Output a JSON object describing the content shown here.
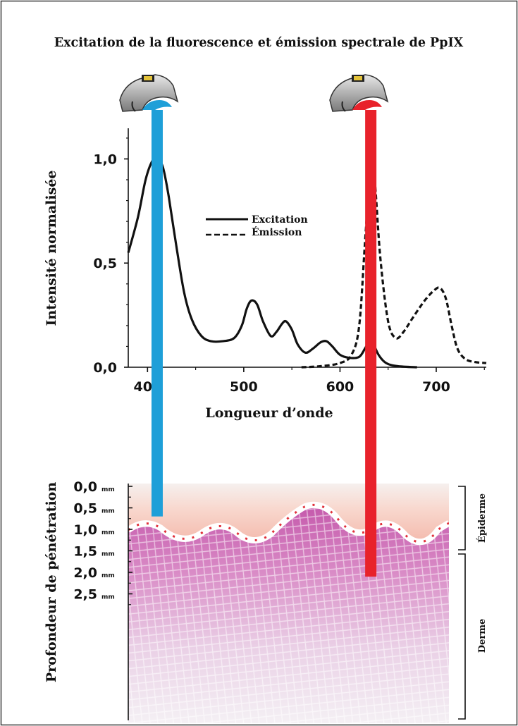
{
  "title": "Excitation de la fluorescence et émission spectrale de PpIX",
  "colors": {
    "excitation_band": "#1e9fd8",
    "emission_band": "#e8222b",
    "epidermis": "#f3b8a8",
    "dermis_grid": "#b0409a"
  },
  "icons": [
    "light-device-blue-icon",
    "light-device-red-icon"
  ],
  "chart_data": [
    {
      "type": "line",
      "xlabel": "Longueur d’onde",
      "ylabel": "Intensité normalisée",
      "xlim": [
        380,
        752
      ],
      "ylim": [
        0,
        1.12
      ],
      "xticks": [
        400,
        500,
        600,
        700
      ],
      "yticks": [
        0,
        0.5,
        1.0
      ],
      "yticklabels": [
        "0,0",
        "0,5",
        "1,0"
      ],
      "legend_position": "center-right",
      "series": [
        {
          "name": "Excitation",
          "style": "solid",
          "points": [
            [
              380,
              0.55
            ],
            [
              390,
              0.72
            ],
            [
              398,
              0.9
            ],
            [
              405,
              0.99
            ],
            [
              410,
              1.0
            ],
            [
              416,
              0.96
            ],
            [
              422,
              0.82
            ],
            [
              430,
              0.58
            ],
            [
              438,
              0.36
            ],
            [
              446,
              0.23
            ],
            [
              456,
              0.15
            ],
            [
              466,
              0.125
            ],
            [
              478,
              0.125
            ],
            [
              490,
              0.14
            ],
            [
              498,
              0.2
            ],
            [
              503,
              0.28
            ],
            [
              508,
              0.32
            ],
            [
              514,
              0.3
            ],
            [
              520,
              0.22
            ],
            [
              528,
              0.15
            ],
            [
              534,
              0.17
            ],
            [
              540,
              0.21
            ],
            [
              544,
              0.22
            ],
            [
              550,
              0.18
            ],
            [
              556,
              0.11
            ],
            [
              564,
              0.07
            ],
            [
              572,
              0.09
            ],
            [
              580,
              0.12
            ],
            [
              586,
              0.125
            ],
            [
              592,
              0.1
            ],
            [
              600,
              0.06
            ],
            [
              610,
              0.045
            ],
            [
              620,
              0.05
            ],
            [
              626,
              0.09
            ],
            [
              631,
              0.13
            ],
            [
              634,
              0.12
            ],
            [
              640,
              0.06
            ],
            [
              648,
              0.02
            ],
            [
              660,
              0.005
            ],
            [
              680,
              0.0
            ]
          ]
        },
        {
          "name": "Émission",
          "style": "dashed",
          "points": [
            [
              560,
              0.0
            ],
            [
              580,
              0.005
            ],
            [
              600,
              0.02
            ],
            [
              612,
              0.06
            ],
            [
              620,
              0.2
            ],
            [
              626,
              0.6
            ],
            [
              632,
              0.98
            ],
            [
              636,
              0.9
            ],
            [
              642,
              0.52
            ],
            [
              650,
              0.22
            ],
            [
              658,
              0.14
            ],
            [
              666,
              0.17
            ],
            [
              676,
              0.24
            ],
            [
              688,
              0.32
            ],
            [
              698,
              0.37
            ],
            [
              704,
              0.38
            ],
            [
              710,
              0.33
            ],
            [
              716,
              0.2
            ],
            [
              722,
              0.09
            ],
            [
              730,
              0.04
            ],
            [
              740,
              0.025
            ],
            [
              752,
              0.02
            ]
          ]
        }
      ],
      "bands": [
        {
          "label_color": "excitation",
          "wavelength": 410
        },
        {
          "label_color": "emission",
          "wavelength": 632
        }
      ]
    },
    {
      "type": "diagram",
      "ylabel": "Profondeur de pénétration",
      "unit": "mm",
      "depth_ticks": [
        0.0,
        0.5,
        1.0,
        1.5,
        2.0,
        2.5
      ],
      "depth_ticklabels": [
        "0,0",
        "0,5",
        "1,0",
        "1,5",
        "2,0",
        "2,5"
      ],
      "layers": [
        {
          "name": "Épiderme",
          "depth_range": [
            0.0,
            0.95
          ]
        },
        {
          "name": "Derme",
          "depth_range": [
            0.95,
            3.1
          ]
        }
      ],
      "penetration": [
        {
          "band": "blue",
          "depth_mm": 0.7
        },
        {
          "band": "red",
          "depth_mm": 2.1
        }
      ]
    }
  ]
}
